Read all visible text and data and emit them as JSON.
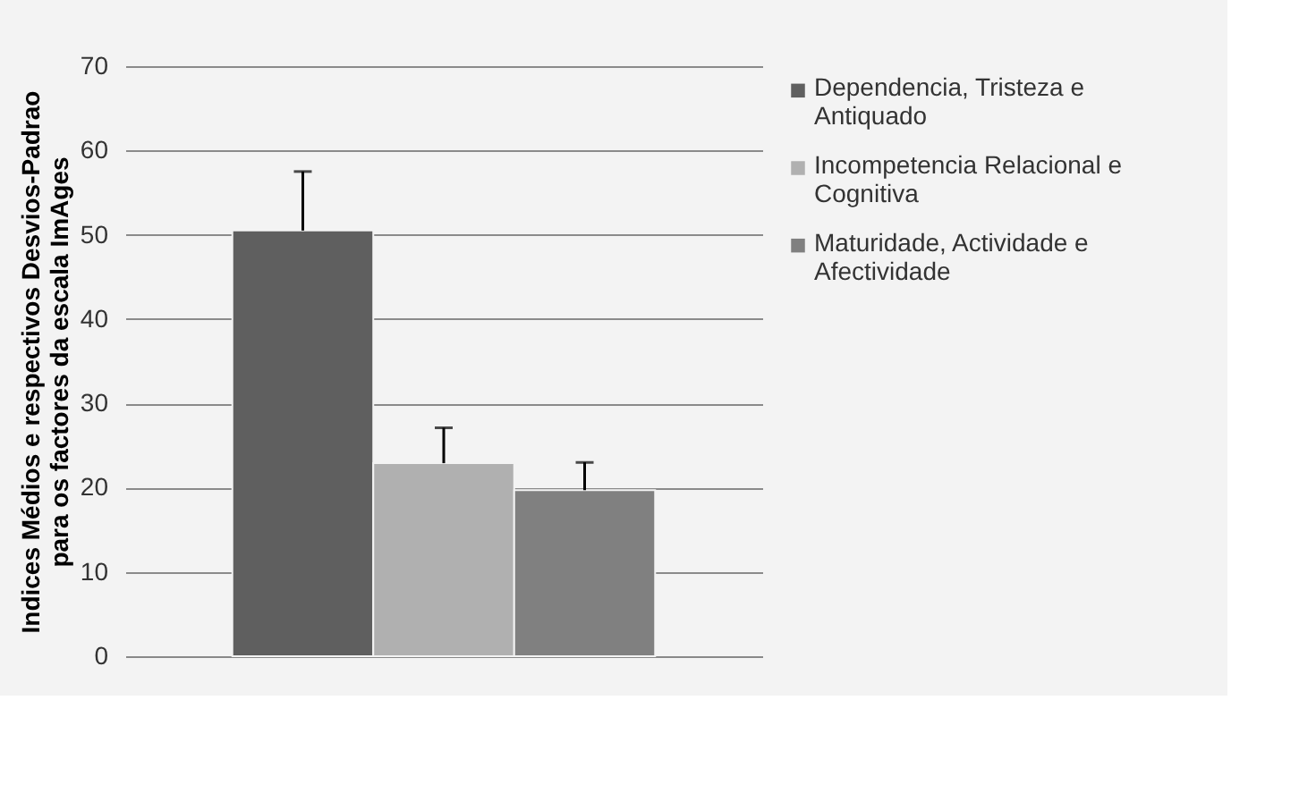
{
  "chart_data": {
    "type": "bar",
    "ylabel": "Indices Médios e  respectivos Desvios-Padrao\npara os factores da escala ImAges",
    "categories": [
      null
    ],
    "series": [
      {
        "name": "Dependencia, Tristeza e Antiquado",
        "color": "#5f5f5f",
        "values": [
          50.5
        ],
        "errors": [
          [
            50.5,
            57.5
          ]
        ]
      },
      {
        "name": "Incompetencia Relacional e Cognitiva",
        "color": "#b0b0b0",
        "values": [
          22.9
        ],
        "errors": [
          [
            22.9,
            27.1
          ]
        ]
      },
      {
        "name": "Maturidade, Actividade e Afectividade",
        "color": "#808080",
        "values": [
          19.7
        ],
        "errors": [
          [
            19.7,
            23.0
          ]
        ]
      }
    ],
    "ylim": [
      0,
      70
    ],
    "yticks": [
      0,
      10,
      20,
      30,
      40,
      50,
      60,
      70
    ],
    "grid": "y",
    "legend": "right"
  }
}
